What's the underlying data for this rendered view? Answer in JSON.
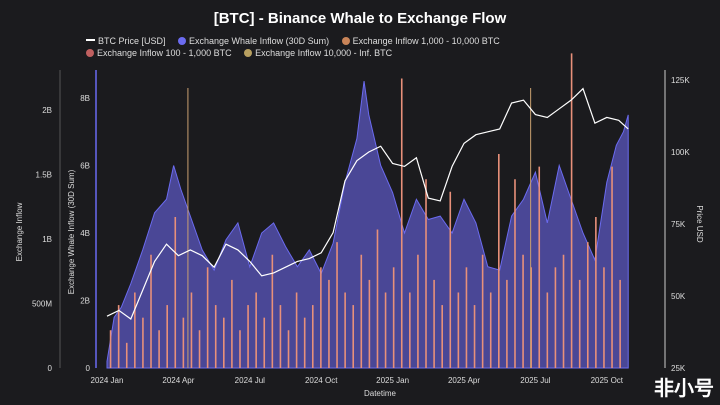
{
  "chart_data": {
    "type": "area",
    "title": "[BTC] - Binance Whale to Exchange Flow",
    "legend": [
      {
        "label": "BTC Price [USD]",
        "color": "#ffffff",
        "kind": "line"
      },
      {
        "label": "Exchange Whale Inflow (30D Sum)",
        "color": "#6b6bf0",
        "kind": "dot"
      },
      {
        "label": "Exchange Inflow 1,000 - 10,000 BTC",
        "color": "#c98458",
        "kind": "dot"
      },
      {
        "label": "Exchange Inflow 100 - 1,000 BTC",
        "color": "#c06060",
        "kind": "dot"
      },
      {
        "label": "Exchange Inflow 10,000 - Inf. BTC",
        "color": "#b8a060",
        "kind": "dot"
      }
    ],
    "xlabel": "Datetime",
    "x_ticks": [
      "2024 Jan",
      "2024 Apr",
      "2024 Jul",
      "2024 Oct",
      "2025 Jan",
      "2025 Apr",
      "2025 Jul",
      "2025 Oct"
    ],
    "x_tick_months": [
      0,
      3,
      6,
      9,
      12,
      15,
      18,
      21
    ],
    "y_outer": {
      "label": "Exchange Inflow",
      "ticks": [
        "0",
        "500M",
        "1B",
        "1.5B",
        "2B"
      ],
      "range": [
        0,
        2.05
      ]
    },
    "y_inner": {
      "label": "Exchange Whale Inflow (30D Sum)",
      "ticks": [
        "0",
        "2B",
        "4B",
        "6B",
        "8B"
      ],
      "range": [
        0,
        8
      ]
    },
    "y_right": {
      "label": "Price USD",
      "ticks": [
        "25K",
        "50K",
        "75K",
        "100K",
        "125K"
      ],
      "range": [
        25,
        125
      ]
    },
    "whale_inflow_B": {
      "months": [
        0,
        0.3,
        0.6,
        1,
        1.5,
        2,
        2.5,
        2.8,
        3.1,
        3.5,
        4,
        4.5,
        5,
        5.5,
        6,
        6.5,
        7,
        7.5,
        8,
        8.5,
        9,
        9.5,
        10,
        10.5,
        10.8,
        11,
        11.5,
        12,
        12.5,
        13,
        13.5,
        14,
        14.5,
        15,
        15.5,
        16,
        16.5,
        17,
        17.5,
        18,
        18.5,
        19,
        19.5,
        20,
        20.5,
        21,
        21.4,
        21.7,
        21.9
      ],
      "values": [
        0.2,
        1.5,
        1.8,
        2.5,
        3.5,
        4.6,
        5.0,
        6.0,
        5.3,
        4.5,
        3.5,
        2.9,
        3.8,
        4.3,
        3.0,
        4.0,
        4.3,
        3.6,
        3.0,
        3.5,
        2.8,
        3.7,
        5.5,
        6.8,
        8.5,
        7.5,
        6.0,
        5.2,
        4.0,
        5.0,
        4.4,
        4.5,
        4.0,
        5.0,
        4.3,
        3.0,
        2.9,
        4.5,
        5.0,
        5.8,
        4.3,
        6.0,
        5.0,
        4.0,
        3.2,
        5.5,
        6.6,
        7.0,
        7.5
      ]
    },
    "btc_price_K": {
      "months": [
        0,
        0.5,
        1,
        1.5,
        2,
        2.5,
        3,
        3.5,
        4,
        4.5,
        5,
        5.5,
        6,
        6.5,
        7,
        7.5,
        8,
        8.5,
        9,
        9.5,
        10,
        10.5,
        11,
        11.5,
        12,
        12.5,
        13,
        13.5,
        14,
        14.5,
        15,
        15.5,
        16,
        16.5,
        17,
        17.5,
        18,
        18.5,
        19,
        19.5,
        20,
        20.5,
        21,
        21.5,
        21.9
      ],
      "values": [
        43,
        45,
        42,
        52,
        62,
        68,
        64,
        66,
        64,
        60,
        68,
        66,
        62,
        57,
        58,
        60,
        62,
        63,
        65,
        72,
        90,
        97,
        100,
        102,
        96,
        95,
        98,
        84,
        83,
        95,
        103,
        106,
        107,
        108,
        117,
        118,
        113,
        112,
        115,
        118,
        122,
        110,
        112,
        111,
        108
      ]
    },
    "spikes_B": [
      0.3,
      0.5,
      0.2,
      0.6,
      0.4,
      0.9,
      0.3,
      0.5,
      1.2,
      0.4,
      0.6,
      0.3,
      0.8,
      0.5,
      0.4,
      0.7,
      0.3,
      0.5,
      0.6,
      0.4,
      0.9,
      0.5,
      0.3,
      0.6,
      0.4,
      0.5,
      0.8,
      0.7,
      1.0,
      0.6,
      0.5,
      0.9,
      0.7,
      1.1,
      0.6,
      0.8,
      2.3,
      0.6,
      0.9,
      1.5,
      0.7,
      0.5,
      1.4,
      0.6,
      0.8,
      0.5,
      0.9,
      0.6,
      1.7,
      0.7,
      1.5,
      0.9,
      0.8,
      1.6,
      0.6,
      0.8,
      0.9,
      2.5,
      0.7,
      1.0,
      1.2,
      0.8,
      1.6,
      0.7
    ],
    "large_inflow_months": [
      3.4,
      17.8
    ]
  },
  "watermark": "非小号"
}
